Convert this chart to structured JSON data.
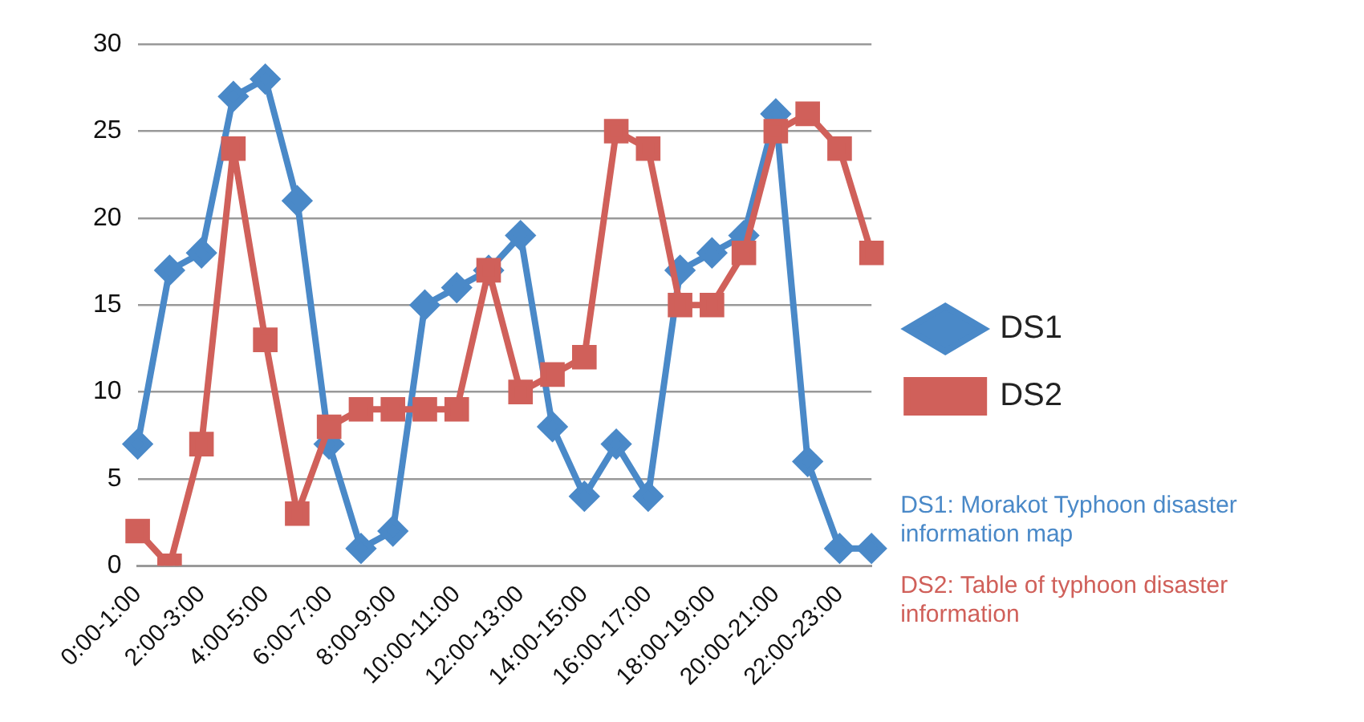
{
  "chart_data": {
    "type": "line",
    "categories": [
      "0:00-1:00",
      null,
      "2:00-3:00",
      null,
      "4:00-5:00",
      null,
      "6:00-7:00",
      null,
      "8:00-9:00",
      null,
      "10:00-11:00",
      null,
      "12:00-13:00",
      null,
      "14:00-15:00",
      null,
      "16:00-17:00",
      null,
      "18:00-19:00",
      null,
      "20:00-21:00",
      null,
      "22:00-23:00",
      null
    ],
    "series": [
      {
        "name": "DS1",
        "color": "#4a89c8",
        "marker": "diamond",
        "values": [
          7,
          17,
          18,
          27,
          28,
          21,
          7,
          1,
          2,
          15,
          16,
          17,
          19,
          8,
          4,
          7,
          4,
          17,
          18,
          19,
          26,
          6,
          1,
          1
        ]
      },
      {
        "name": "DS2",
        "color": "#d0605a",
        "marker": "square",
        "values": [
          2,
          0,
          7,
          24,
          13,
          3,
          8,
          9,
          9,
          9,
          9,
          17,
          10,
          11,
          12,
          25,
          24,
          15,
          15,
          18,
          25,
          26,
          24,
          18
        ]
      }
    ],
    "ylim": [
      0,
      30
    ],
    "yticks": [
      0,
      5,
      10,
      15,
      20,
      25,
      30
    ],
    "grid": "y",
    "legend": "right",
    "line_style": "solid",
    "annotations": [
      "DS1: Morakot Typhoon disaster information map",
      "DS2: Table of typhoon disaster information"
    ]
  }
}
